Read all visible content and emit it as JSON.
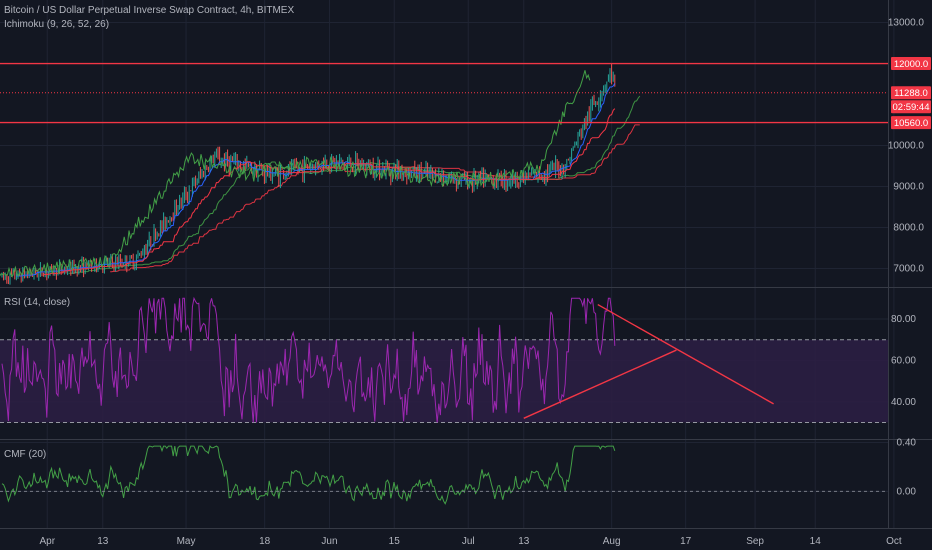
{
  "header": {
    "symbol_title": "Bitcoin / US Dollar Perpetual Inverse Swap Contract, 4h, BITMEX",
    "indicator_ichimoku": "Ichimoku (9, 26, 52, 26)",
    "indicator_rsi": "RSI (14, close)",
    "indicator_cmf": "CMF (20)"
  },
  "colors": {
    "background": "#131722",
    "grid": "#1f2433",
    "separator": "#363a45",
    "axis_text": "#b2b5be",
    "red_line": "#f23645",
    "green_line": "#26a69a",
    "candle_up": "#26a69a",
    "candle_down": "#ef5350",
    "tenkan": "#2962ff",
    "kijun": "#f23645",
    "chikou": "#43a047",
    "rsi_line": "#9c27b0",
    "rsi_band": "#2d1f44",
    "cmf_line": "#43a047",
    "trendline": "#f23645"
  },
  "x_axis": {
    "ticks": [
      "Apr",
      "13",
      "May",
      "18",
      "Jun",
      "15",
      "Jul",
      "13",
      "Aug",
      "17",
      "Sep",
      "14",
      "Oct"
    ]
  },
  "chart_data": [
    {
      "type": "candlestick",
      "title": "Bitcoin / US Dollar Perpetual Inverse Swap Contract, 4h, BITMEX",
      "y_ticks": [
        7000.0,
        8000.0,
        9000.0,
        10000.0,
        13000.0
      ],
      "ylim": [
        6550,
        13550
      ],
      "price_anchors": [
        {
          "date": "Mar 23",
          "price": 6800
        },
        {
          "date": "Apr 6",
          "price": 7000
        },
        {
          "date": "Apr 20",
          "price": 7200
        },
        {
          "date": "May 1",
          "price": 8800
        },
        {
          "date": "May 7",
          "price": 9700
        },
        {
          "date": "May 20",
          "price": 9300
        },
        {
          "date": "Jun 1",
          "price": 9600
        },
        {
          "date": "Jun 15",
          "price": 9400
        },
        {
          "date": "Jul 1",
          "price": 9150
        },
        {
          "date": "Jul 13",
          "price": 9200
        },
        {
          "date": "Jul 22",
          "price": 9500
        },
        {
          "date": "Jul 26",
          "price": 10500
        },
        {
          "date": "Jul 28",
          "price": 11000
        },
        {
          "date": "Aug 1",
          "price": 11800
        },
        {
          "date": "Aug 2",
          "price": 11288
        }
      ],
      "horizontal_lines": [
        {
          "value": 12000,
          "label": "12000.0",
          "style": "solid"
        },
        {
          "value": 11288,
          "label": "11288.0",
          "style": "dotted"
        },
        {
          "value": 10560,
          "label": "10560.0",
          "style": "solid"
        }
      ],
      "price_labels": [
        {
          "label": "11288.0",
          "color": "#f23645"
        },
        {
          "label": "02:59:44",
          "color": "#f23645"
        },
        {
          "label": "12000.0",
          "color": "#f23645"
        },
        {
          "label": "10560.0",
          "color": "#f23645"
        }
      ]
    },
    {
      "type": "line",
      "title": "RSI (14, close)",
      "y_ticks": [
        40.0,
        60.0,
        80.0
      ],
      "ylim": [
        22,
        95
      ],
      "band": [
        30,
        70
      ],
      "trendlines": [
        {
          "from": {
            "date": "Jul 29",
            "value": 87
          },
          "to": {
            "date": "Sep 5",
            "value": 39
          }
        },
        {
          "from": {
            "date": "Jul 13",
            "value": 32
          },
          "to": {
            "date": "Aug 15",
            "value": 65
          }
        }
      ]
    },
    {
      "type": "line",
      "title": "CMF (20)",
      "y_ticks": [
        0.0,
        0.4
      ],
      "ylim": [
        -0.3,
        0.42
      ]
    }
  ]
}
